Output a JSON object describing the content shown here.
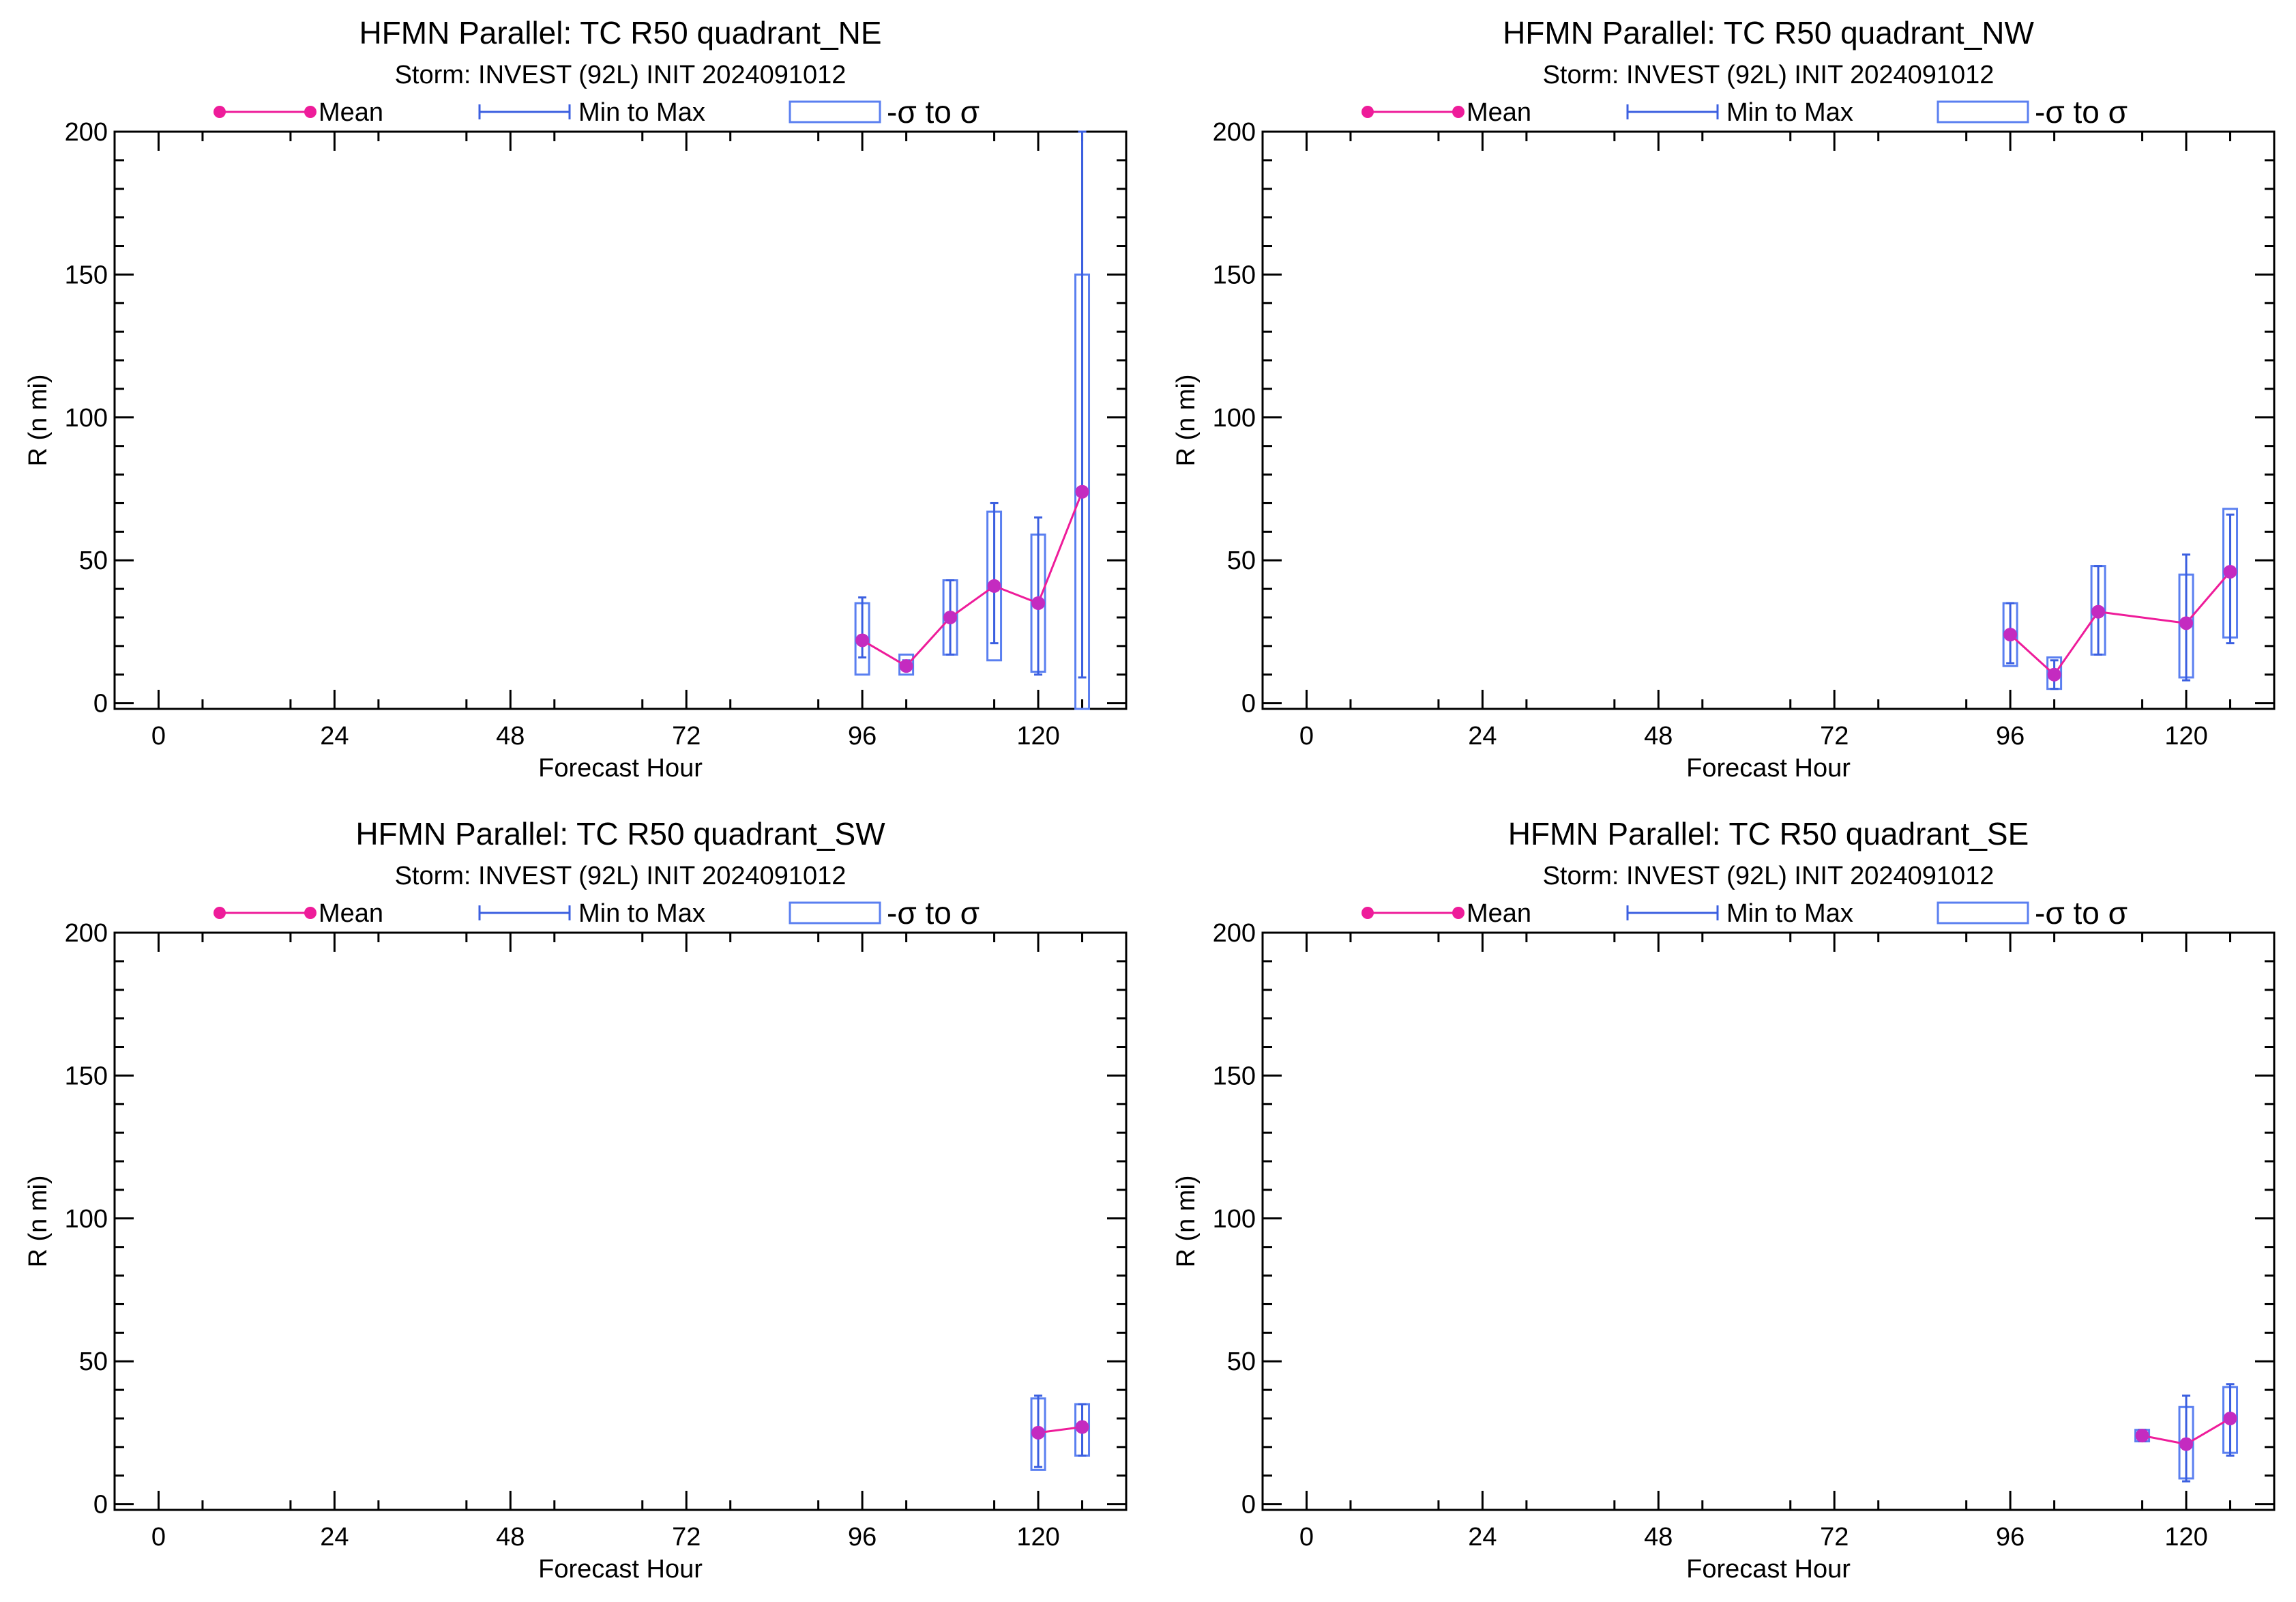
{
  "legend": {
    "mean_label": "Mean",
    "range_label": "Min to Max",
    "sigma_label": "-σ to σ"
  },
  "colors": {
    "mean_line": "#ee1c9a",
    "mean_marker": "#c42bc0",
    "range": "#3b5fe0",
    "sigma": "#5a7ff0",
    "axis": "#000000"
  },
  "chart_data": [
    {
      "type": "line",
      "title": "HFMN Parallel: TC  R50 quadrant_NE",
      "subtitle": "Storm: INVEST (92L) INIT 2024091012",
      "xlabel": "Forecast Hour",
      "ylabel": "R (n mi)",
      "xlim": [
        -6,
        132
      ],
      "ylim": [
        -2,
        200
      ],
      "xticks": [
        0,
        24,
        48,
        72,
        96,
        120
      ],
      "yticks": [
        0,
        50,
        100,
        150,
        200
      ],
      "series": [
        {
          "x": 96,
          "mean": 22,
          "min": 16,
          "max": 37,
          "sd_lo": 10,
          "sd_hi": 35
        },
        {
          "x": 102,
          "mean": 13,
          "min": 12,
          "max": 15,
          "sd_lo": 10,
          "sd_hi": 17
        },
        {
          "x": 108,
          "mean": 30,
          "min": 17,
          "max": 43,
          "sd_lo": 17,
          "sd_hi": 43
        },
        {
          "x": 114,
          "mean": 41,
          "min": 21,
          "max": 70,
          "sd_lo": 15,
          "sd_hi": 67
        },
        {
          "x": 120,
          "mean": 35,
          "min": 10,
          "max": 65,
          "sd_lo": 11,
          "sd_hi": 59
        },
        {
          "x": 126,
          "mean": 74,
          "min": 9,
          "max": 200,
          "sd_lo": -2,
          "sd_hi": 150
        }
      ]
    },
    {
      "type": "line",
      "title": "HFMN Parallel: TC  R50 quadrant_NW",
      "subtitle": "Storm: INVEST (92L) INIT 2024091012",
      "xlabel": "Forecast Hour",
      "ylabel": "R (n mi)",
      "xlim": [
        -6,
        132
      ],
      "ylim": [
        -2,
        200
      ],
      "xticks": [
        0,
        24,
        48,
        72,
        96,
        120
      ],
      "yticks": [
        0,
        50,
        100,
        150,
        200
      ],
      "series": [
        {
          "x": 96,
          "mean": 24,
          "min": 14,
          "max": 35,
          "sd_lo": 13,
          "sd_hi": 35
        },
        {
          "x": 102,
          "mean": 10,
          "min": 5,
          "max": 15,
          "sd_lo": 5,
          "sd_hi": 16
        },
        {
          "x": 108,
          "mean": 32,
          "min": 17,
          "max": 48,
          "sd_lo": 17,
          "sd_hi": 48
        },
        {
          "x": 120,
          "mean": 28,
          "min": 8,
          "max": 52,
          "sd_lo": 9,
          "sd_hi": 45
        },
        {
          "x": 126,
          "mean": 46,
          "min": 21,
          "max": 66,
          "sd_lo": 23,
          "sd_hi": 68
        }
      ]
    },
    {
      "type": "line",
      "title": "HFMN Parallel: TC  R50 quadrant_SW",
      "subtitle": "Storm: INVEST (92L) INIT 2024091012",
      "xlabel": "Forecast Hour",
      "ylabel": "R (n mi)",
      "xlim": [
        -6,
        132
      ],
      "ylim": [
        -2,
        200
      ],
      "xticks": [
        0,
        24,
        48,
        72,
        96,
        120
      ],
      "yticks": [
        0,
        50,
        100,
        150,
        200
      ],
      "series": [
        {
          "x": 120,
          "mean": 25,
          "min": 13,
          "max": 38,
          "sd_lo": 12,
          "sd_hi": 37
        },
        {
          "x": 126,
          "mean": 27,
          "min": 17,
          "max": 35,
          "sd_lo": 17,
          "sd_hi": 35
        }
      ]
    },
    {
      "type": "line",
      "title": "HFMN Parallel: TC  R50 quadrant_SE",
      "subtitle": "Storm: INVEST (92L) INIT 2024091012",
      "xlabel": "Forecast Hour",
      "ylabel": "R (n mi)",
      "xlim": [
        -6,
        132
      ],
      "ylim": [
        -2,
        200
      ],
      "xticks": [
        0,
        24,
        48,
        72,
        96,
        120
      ],
      "yticks": [
        0,
        50,
        100,
        150,
        200
      ],
      "series": [
        {
          "x": 114,
          "mean": 24,
          "min": 22,
          "max": 26,
          "sd_lo": 22,
          "sd_hi": 26
        },
        {
          "x": 120,
          "mean": 21,
          "min": 8,
          "max": 38,
          "sd_lo": 9,
          "sd_hi": 34
        },
        {
          "x": 126,
          "mean": 30,
          "min": 17,
          "max": 42,
          "sd_lo": 18,
          "sd_hi": 41
        }
      ]
    }
  ]
}
